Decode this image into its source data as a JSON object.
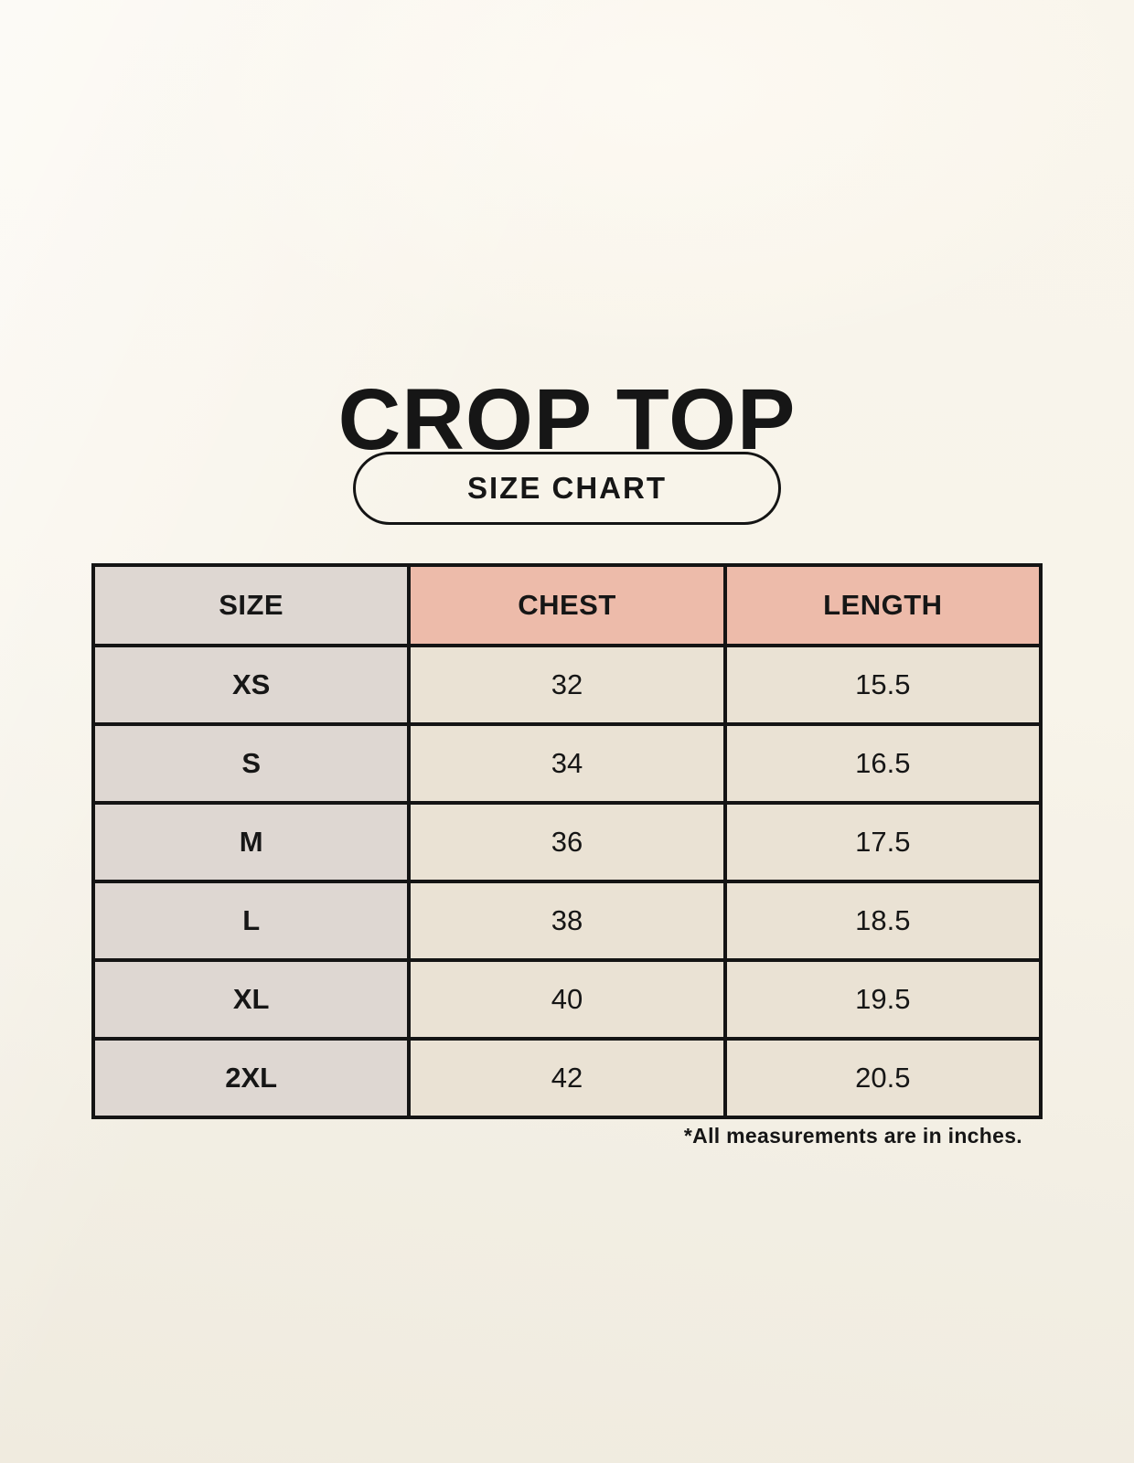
{
  "page": {
    "title": "CROP TOP",
    "size_chart_badge": "SIZE CHART",
    "footnote": "*All measurements are in inches."
  },
  "colors": {
    "background_cream": "#f8f4ea",
    "header_pink": "#edbbaa",
    "size_column_grey": "#ded7d2",
    "data_cell_cream": "#eae2d4",
    "border_black": "#141414",
    "text_black": "#161616"
  },
  "chart_data": {
    "type": "table",
    "title": "CROP TOP",
    "subtitle": "SIZE CHART",
    "columns": [
      "SIZE",
      "CHEST",
      "LENGTH"
    ],
    "rows": [
      [
        "XS",
        "32",
        "15.5"
      ],
      [
        "S",
        "34",
        "16.5"
      ],
      [
        "M",
        "36",
        "17.5"
      ],
      [
        "L",
        "38",
        "18.5"
      ],
      [
        "XL",
        "40",
        "19.5"
      ],
      [
        "2XL",
        "42",
        "20.5"
      ]
    ],
    "units_note": "*All measurements are in inches."
  }
}
